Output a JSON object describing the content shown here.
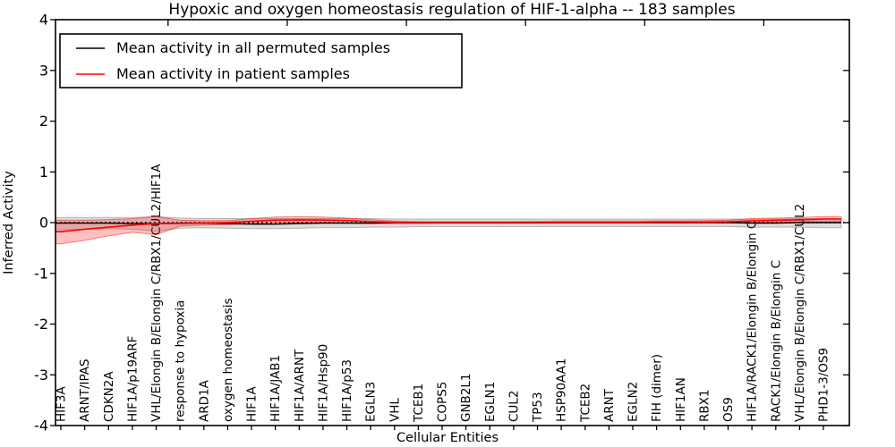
{
  "chart_data": {
    "type": "line",
    "title": "Hypoxic and oxygen homeostasis regulation of HIF-1-alpha -- 183 samples",
    "xlabel": "Cellular Entities",
    "ylabel": "Inferred Activity",
    "ylim": [
      -4,
      4
    ],
    "ytick_values": [
      -4,
      -3,
      -2,
      -1,
      0,
      1,
      2,
      3,
      4
    ],
    "ytick_labels": [
      "-4",
      "-3",
      "-2",
      "-1",
      "0",
      "1",
      "2",
      "3",
      "4"
    ],
    "x_major_ticks": [
      5,
      10,
      15,
      20,
      25,
      30
    ],
    "grid": false,
    "legend_position": "upper left",
    "zero_line": {
      "style": "dotted",
      "color": "#000000",
      "y": 0
    },
    "categories": [
      "HIF3A",
      "ARNT/IPAS",
      "CDKN2A",
      "HIF1A/p19ARF",
      "VHL/Elongin B/Elongin C/RBX1/CUL2/HIF1A",
      "response to hypoxia",
      "ARD1A",
      "oxygen homeostasis",
      "HIF1A",
      "HIF1A/JAB1",
      "HIF1A/ARNT",
      "HIF1A/Hsp90",
      "HIF1A/p53",
      "EGLN3",
      "VHL",
      "TCEB1",
      "COPS5",
      "GNB2L1",
      "EGLN1",
      "CUL2",
      "TP53",
      "HSP90AA1",
      "TCEB2",
      "ARNT",
      "EGLN2",
      "FIH (dimer)",
      "HIF1AN",
      "RBX1",
      "OS9",
      "HIF1A/RACK1/Elongin B/Elongin C",
      "RACK1/Elongin B/Elongin C",
      "VHL/Elongin B/Elongin C/RBX1/CUL2",
      "PHD1-3/OS9"
    ],
    "series": [
      {
        "name": "Mean activity in all permuted samples",
        "color": "#000000",
        "band_color": "rgba(0,0,0,0.13)",
        "band_edge": "rgba(110,110,110,0.45)",
        "values": [
          -0.01,
          -0.01,
          -0.01,
          -0.02,
          -0.02,
          -0.01,
          -0.01,
          -0.02,
          -0.03,
          -0.03,
          -0.02,
          -0.01,
          -0.01,
          -0.01,
          0,
          0,
          0,
          0,
          0,
          0,
          0,
          0,
          0,
          0,
          0,
          0,
          0,
          0,
          0,
          -0.01,
          -0.01,
          0,
          0
        ],
        "band_lo": [
          -0.14,
          -0.13,
          -0.12,
          -0.13,
          -0.17,
          -0.11,
          -0.1,
          -0.11,
          -0.12,
          -0.12,
          -0.11,
          -0.1,
          -0.1,
          -0.09,
          -0.09,
          -0.08,
          -0.08,
          -0.08,
          -0.08,
          -0.08,
          -0.08,
          -0.08,
          -0.08,
          -0.08,
          -0.08,
          -0.08,
          -0.08,
          -0.08,
          -0.08,
          -0.09,
          -0.09,
          -0.09,
          -0.1
        ],
        "band_hi": [
          0.1,
          0.1,
          0.1,
          0.1,
          0.12,
          0.09,
          0.08,
          0.08,
          0.08,
          0.08,
          0.08,
          0.08,
          0.08,
          0.08,
          0.07,
          0.07,
          0.07,
          0.07,
          0.07,
          0.07,
          0.07,
          0.07,
          0.07,
          0.07,
          0.07,
          0.07,
          0.07,
          0.07,
          0.07,
          0.07,
          0.07,
          0.08,
          0.08
        ]
      },
      {
        "name": "Mean activity in patient samples",
        "color": "#ff0000",
        "band_color": "rgba(255,0,0,0.25)",
        "band_edge": "rgba(255,0,0,0.45)",
        "values": [
          -0.18,
          -0.13,
          -0.09,
          -0.05,
          -0.02,
          -0.015,
          -0.01,
          0,
          0.025,
          0.05,
          0.055,
          0.05,
          0.04,
          0.02,
          0.005,
          0,
          0,
          0,
          0,
          0,
          0,
          0.005,
          0.005,
          0.005,
          0.005,
          0.01,
          0.01,
          0.01,
          0.015,
          0.035,
          0.045,
          0.055,
          0.07
        ],
        "band_lo": [
          -0.42,
          -0.35,
          -0.26,
          -0.19,
          -0.24,
          -0.07,
          -0.05,
          -0.04,
          -0.02,
          0,
          0,
          0,
          -0.01,
          -0.02,
          -0.02,
          -0.02,
          -0.015,
          -0.015,
          -0.015,
          -0.015,
          -0.015,
          -0.01,
          -0.01,
          -0.01,
          -0.01,
          -0.005,
          -0.005,
          0,
          0,
          0.005,
          0.01,
          0.015,
          0.02
        ],
        "band_hi": [
          0.05,
          0.05,
          0.06,
          0.08,
          0.12,
          0.05,
          0.04,
          0.04,
          0.08,
          0.11,
          0.12,
          0.11,
          0.09,
          0.06,
          0.03,
          0.02,
          0.02,
          0.02,
          0.02,
          0.02,
          0.025,
          0.03,
          0.03,
          0.03,
          0.03,
          0.035,
          0.035,
          0.04,
          0.05,
          0.08,
          0.09,
          0.1,
          0.12
        ]
      }
    ]
  }
}
